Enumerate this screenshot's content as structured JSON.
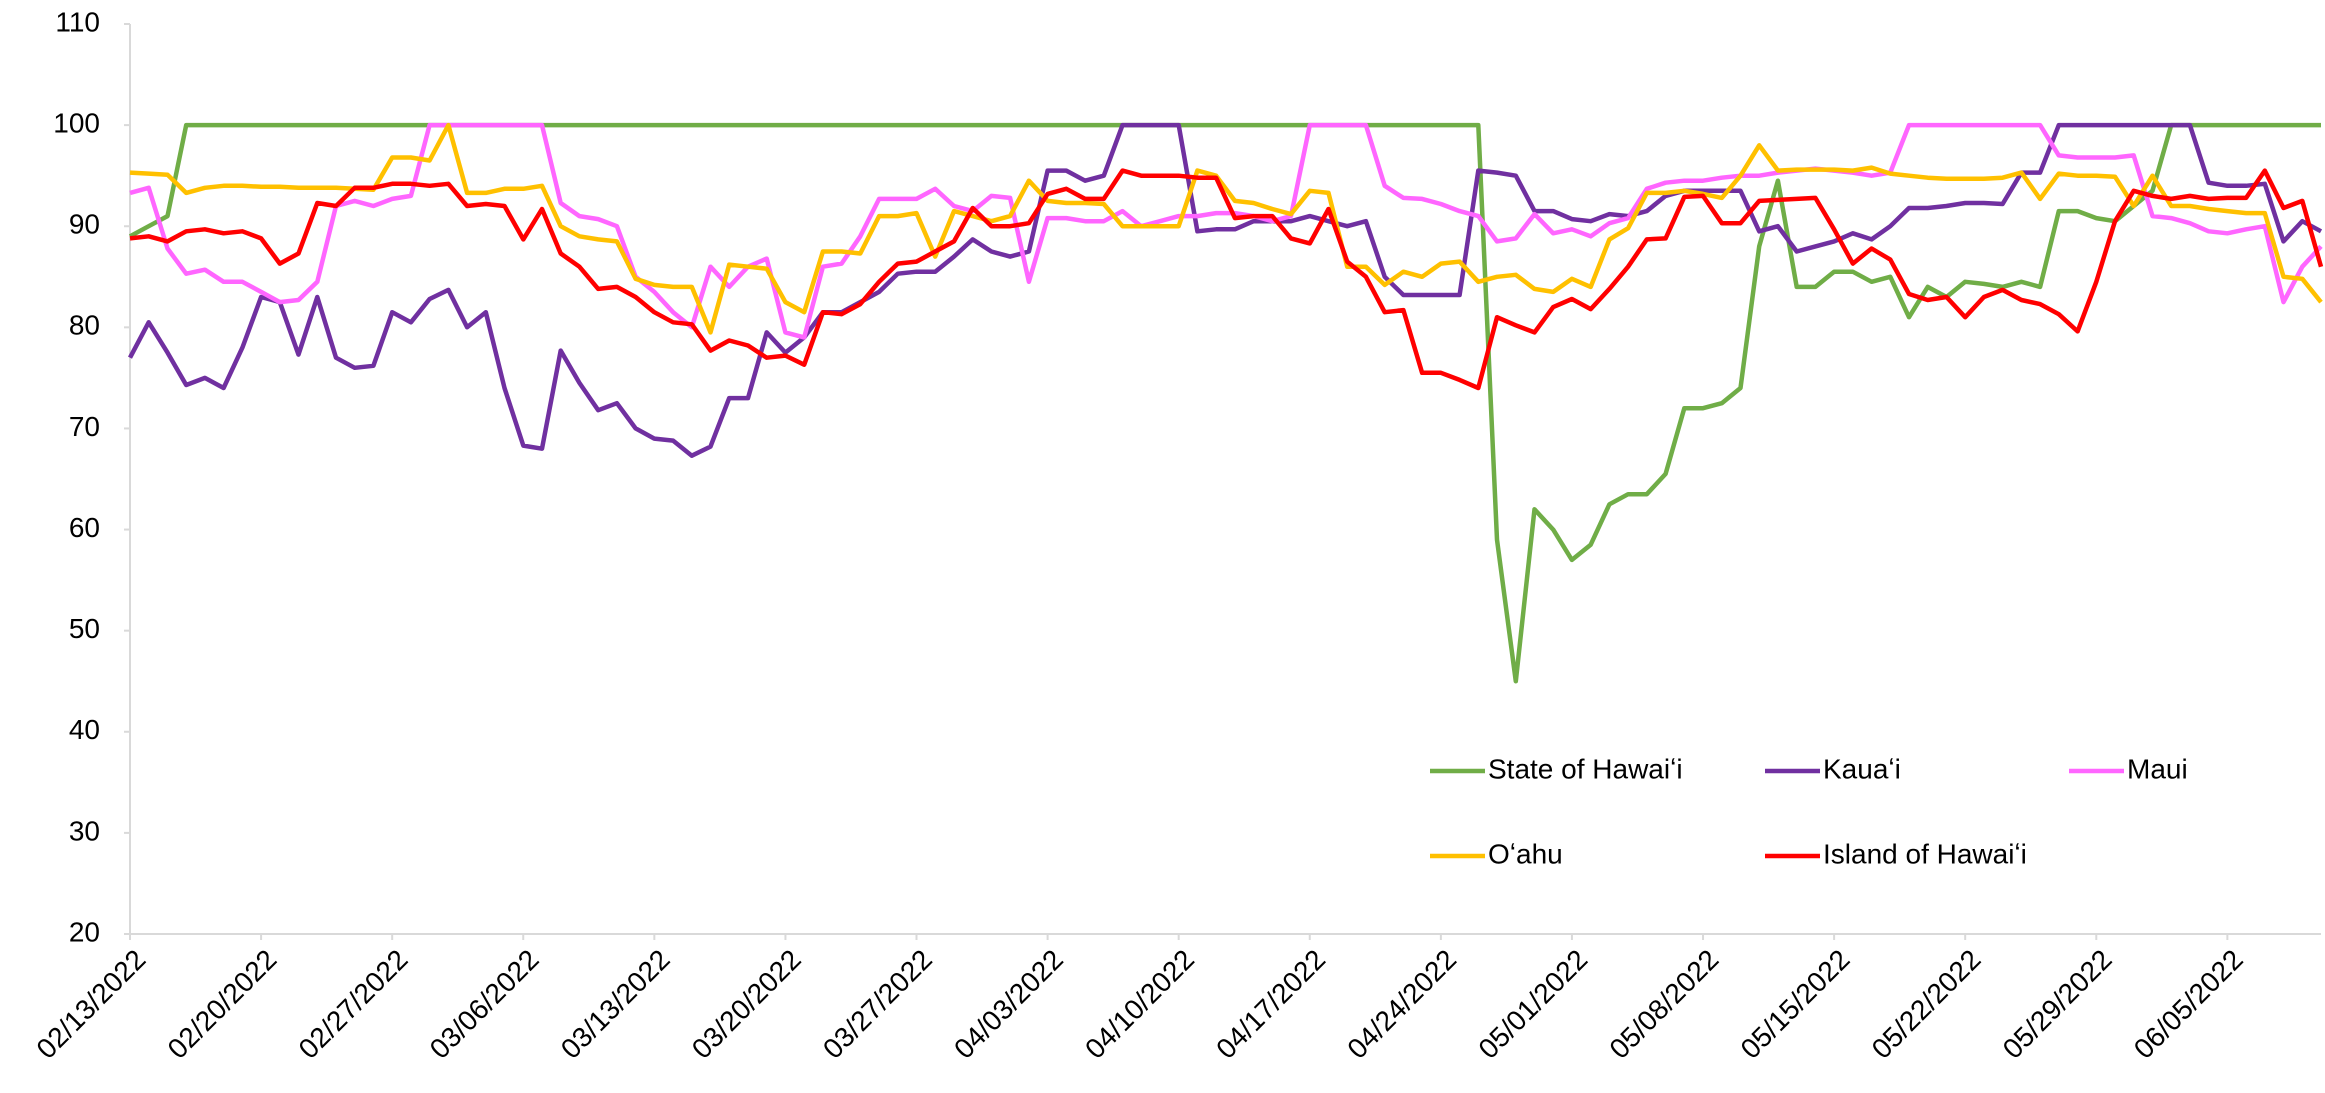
{
  "chart_data": {
    "type": "line",
    "categories": [
      "02/13/2022",
      null,
      null,
      null,
      null,
      null,
      null,
      "02/20/2022",
      null,
      null,
      null,
      null,
      null,
      null,
      "02/27/2022",
      null,
      null,
      null,
      null,
      null,
      null,
      "03/06/2022",
      null,
      null,
      null,
      null,
      null,
      null,
      "03/13/2022",
      null,
      null,
      null,
      null,
      null,
      null,
      "03/20/2022",
      null,
      null,
      null,
      null,
      null,
      null,
      "03/27/2022",
      null,
      null,
      null,
      null,
      null,
      null,
      "04/03/2022",
      null,
      null,
      null,
      null,
      null,
      null,
      "04/10/2022",
      null,
      null,
      null,
      null,
      null,
      null,
      "04/17/2022",
      null,
      null,
      null,
      null,
      null,
      null,
      "04/24/2022",
      null,
      null,
      null,
      null,
      null,
      null,
      "05/01/2022",
      null,
      null,
      null,
      null,
      null,
      null,
      "05/08/2022",
      null,
      null,
      null,
      null,
      null,
      null,
      "05/15/2022",
      null,
      null,
      null,
      null,
      null,
      null,
      "05/22/2022",
      null,
      null,
      null,
      null,
      null,
      null,
      "05/29/2022",
      null,
      null,
      null,
      null,
      null,
      null,
      "06/05/2022",
      null,
      null,
      null,
      null,
      null
    ],
    "series": [
      {
        "name": "State of Hawaiʻi",
        "color": "#70ad47",
        "values": [
          89,
          90,
          91,
          100,
          100,
          100,
          100,
          100,
          100,
          100,
          100,
          100,
          100,
          100,
          100,
          100,
          100,
          100,
          100,
          100,
          100,
          100,
          100,
          100,
          100,
          100,
          100,
          100,
          100,
          100,
          100,
          100,
          100,
          100,
          100,
          100,
          100,
          100,
          100,
          100,
          100,
          100,
          100,
          100,
          100,
          100,
          100,
          100,
          100,
          100,
          100,
          100,
          100,
          100,
          100,
          100,
          100,
          100,
          100,
          100,
          100,
          100,
          100,
          100,
          100,
          100,
          100,
          100,
          100,
          100,
          100,
          100,
          100,
          59,
          45,
          62,
          60,
          57,
          58.5,
          62.5,
          63.5,
          63.5,
          65.5,
          72,
          72,
          72.5,
          74,
          88,
          94.5,
          84,
          84,
          85.5,
          85.5,
          84.5,
          85,
          81,
          84,
          83,
          84.5,
          84.3,
          84,
          84.5,
          84,
          91.5,
          91.5,
          90.8,
          90.5,
          92,
          93.5,
          100,
          100,
          100,
          100,
          100,
          100,
          100,
          100,
          100
        ]
      },
      {
        "name": "Kauaʻi",
        "color": "#7030a0",
        "values": [
          77,
          80.5,
          77.5,
          74.3,
          75,
          74,
          78,
          83,
          82.5,
          77.3,
          83,
          77,
          76,
          76.2,
          81.5,
          80.5,
          82.8,
          83.7,
          80,
          81.5,
          74,
          68.3,
          68,
          77.7,
          74.5,
          71.8,
          72.5,
          70,
          69,
          68.8,
          67.3,
          68.2,
          73,
          73,
          79.5,
          77.5,
          79,
          81.5,
          81.5,
          82.5,
          83.5,
          85.3,
          85.5,
          85.5,
          87,
          88.7,
          87.5,
          87,
          87.5,
          95.5,
          95.5,
          94.5,
          95,
          100,
          100,
          100,
          100,
          89.5,
          89.7,
          89.7,
          90.5,
          90.5,
          90.5,
          91,
          90.5,
          90,
          90.5,
          85,
          83.2,
          83.2,
          83.2,
          83.2,
          95.5,
          95.3,
          95,
          91.5,
          91.5,
          90.7,
          90.5,
          91.2,
          91,
          91.5,
          93,
          93.5,
          93.5,
          93.5,
          93.5,
          89.5,
          90,
          87.5,
          88,
          88.5,
          89.3,
          88.7,
          90,
          91.8,
          91.8,
          92,
          92.3,
          92.3,
          92.2,
          95.3,
          95.3,
          100,
          100,
          100,
          100,
          100,
          100,
          100,
          100,
          94.3,
          94,
          94,
          94.2,
          88.5,
          90.5,
          89.5
        ]
      },
      {
        "name": "Maui",
        "color": "#ff66ff",
        "values": [
          93.3,
          93.8,
          87.8,
          85.3,
          85.7,
          84.5,
          84.5,
          83.5,
          82.5,
          82.7,
          84.5,
          92,
          92.5,
          92,
          92.7,
          93,
          100,
          100,
          100,
          100,
          100,
          100,
          100,
          92.3,
          91,
          90.7,
          90,
          85,
          83.5,
          81.5,
          80,
          86,
          84,
          86,
          86.8,
          79.5,
          79,
          86,
          86.3,
          89,
          92.7,
          92.7,
          92.7,
          93.7,
          92,
          91.5,
          93,
          92.8,
          84.5,
          90.8,
          90.8,
          90.5,
          90.5,
          91.5,
          90,
          90.5,
          91,
          91,
          91.3,
          91.3,
          91,
          90.5,
          91,
          100,
          100,
          100,
          100,
          94,
          92.8,
          92.7,
          92.2,
          91.5,
          91,
          88.5,
          88.8,
          91.2,
          89.3,
          89.7,
          89,
          90.3,
          90.8,
          93.7,
          94.3,
          94.5,
          94.5,
          94.8,
          95,
          95,
          95.3,
          95.5,
          95.7,
          95.5,
          95.3,
          95,
          95.3,
          100,
          100,
          100,
          100,
          100,
          100,
          100,
          100,
          97,
          96.8,
          96.8,
          96.8,
          97,
          91,
          90.8,
          90.3,
          89.5,
          89.3,
          89.7,
          90,
          82.5,
          86,
          88
        ]
      },
      {
        "name": "Oʻahu",
        "color": "#ffc000",
        "values": [
          95.3,
          95.2,
          95.1,
          93.3,
          93.8,
          94,
          94,
          93.9,
          93.9,
          93.8,
          93.8,
          93.8,
          93.7,
          93.6,
          96.8,
          96.8,
          96.5,
          100,
          93.3,
          93.3,
          93.7,
          93.7,
          94,
          90,
          89,
          88.7,
          88.5,
          84.8,
          84.2,
          84,
          84,
          79.5,
          86.2,
          86,
          85.8,
          82.5,
          81.5,
          87.5,
          87.5,
          87.3,
          91,
          91,
          91.3,
          87,
          91.5,
          91,
          90.5,
          91,
          94.5,
          92.5,
          92.3,
          92.3,
          92.2,
          90,
          90,
          90,
          90,
          95.5,
          95,
          92.5,
          92.3,
          91.7,
          91.2,
          93.5,
          93.3,
          86,
          86,
          84.2,
          85.5,
          85,
          86.3,
          86.5,
          84.5,
          85,
          85.2,
          83.8,
          83.5,
          84.8,
          84,
          88.7,
          89.8,
          93.3,
          93.3,
          93.5,
          93.2,
          92.8,
          95,
          98,
          95.5,
          95.6,
          95.6,
          95.6,
          95.5,
          95.8,
          95.2,
          95,
          94.8,
          94.7,
          94.7,
          94.7,
          94.8,
          95.3,
          92.7,
          95.2,
          95,
          95,
          94.9,
          92,
          95,
          92,
          92,
          91.7,
          91.5,
          91.3,
          91.3,
          85,
          84.8,
          82.5
        ]
      },
      {
        "name": "Island of Hawaiʻi",
        "color": "#ff0000",
        "values": [
          88.8,
          89,
          88.5,
          89.5,
          89.7,
          89.3,
          89.5,
          88.8,
          86.3,
          87.3,
          92.3,
          92,
          93.8,
          93.8,
          94.2,
          94.2,
          94,
          94.2,
          92,
          92.2,
          92,
          88.7,
          91.7,
          87.3,
          86,
          83.8,
          84,
          83,
          81.5,
          80.5,
          80.3,
          77.7,
          78.7,
          78.2,
          77,
          77.2,
          76.3,
          81.5,
          81.3,
          82.3,
          84.5,
          86.3,
          86.5,
          87.5,
          88.5,
          91.8,
          90,
          90,
          90.3,
          93.2,
          93.7,
          92.7,
          92.7,
          95.5,
          95,
          95,
          95,
          94.8,
          94.8,
          90.8,
          91,
          91,
          88.8,
          88.3,
          91.7,
          86.5,
          85,
          81.5,
          81.7,
          75.5,
          75.5,
          74.8,
          74,
          81,
          80.2,
          79.5,
          82,
          82.8,
          81.8,
          83.8,
          86,
          88.7,
          88.8,
          92.9,
          93,
          90.3,
          90.3,
          92.5,
          92.6,
          92.7,
          92.8,
          89.7,
          86.3,
          87.8,
          86.7,
          83.3,
          82.7,
          83,
          81,
          83,
          83.7,
          82.7,
          82.3,
          81.3,
          79.6,
          84.5,
          90.5,
          93.5,
          93,
          92.7,
          93,
          92.7,
          92.8,
          92.8,
          95.5,
          91.8,
          92.5,
          86
        ]
      }
    ],
    "ylim": [
      20,
      110
    ],
    "yticks": [
      20,
      30,
      40,
      50,
      60,
      70,
      80,
      90,
      100,
      110
    ],
    "grid": false,
    "legend": "lower right"
  }
}
